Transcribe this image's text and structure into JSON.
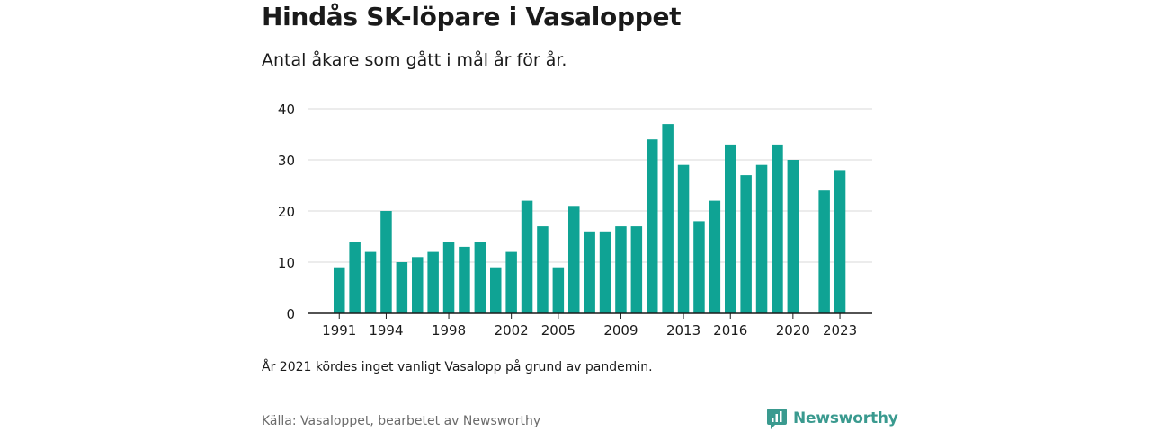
{
  "header": {
    "title": "Hindås SK-löpare i Vasaloppet",
    "subtitle": "Antal åkare som gått i mål år för år."
  },
  "footer": {
    "note": "År 2021 kördes inget vanligt Vasalopp på grund av pandemin.",
    "source": "Källa: Vasaloppet, bearbetet av Newsworthy",
    "brand": "Newsworthy",
    "brand_color": "#3a9a8f"
  },
  "chart_data": {
    "type": "bar",
    "bar_color": "#0fa394",
    "categories": [
      1991,
      1992,
      1993,
      1994,
      1995,
      1996,
      1997,
      1998,
      1999,
      2000,
      2001,
      2002,
      2003,
      2004,
      2005,
      2006,
      2007,
      2008,
      2009,
      2010,
      2011,
      2012,
      2013,
      2014,
      2015,
      2016,
      2017,
      2018,
      2019,
      2020,
      2021,
      2022,
      2023
    ],
    "values": [
      9,
      14,
      12,
      20,
      10,
      11,
      12,
      14,
      13,
      14,
      9,
      12,
      22,
      17,
      9,
      21,
      16,
      16,
      17,
      17,
      34,
      37,
      29,
      18,
      22,
      33,
      27,
      29,
      33,
      30,
      null,
      24,
      28
    ],
    "x_tick_labels": [
      "1991",
      "1994",
      "1998",
      "2002",
      "2005",
      "2009",
      "2013",
      "2016",
      "2020",
      "2023"
    ],
    "y_ticks": [
      0,
      10,
      20,
      30,
      40
    ],
    "ylim": [
      0,
      40
    ],
    "grid": true
  }
}
